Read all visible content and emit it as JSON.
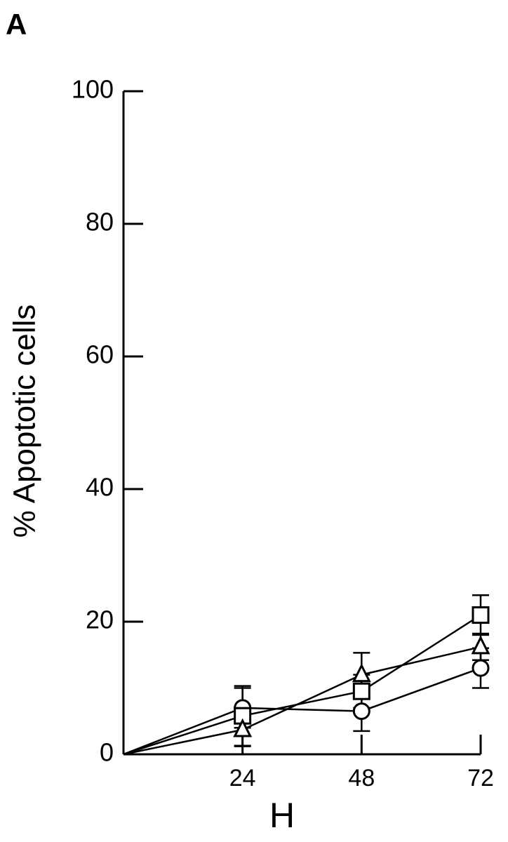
{
  "chart_data": {
    "type": "line",
    "panel_label": "A",
    "y_label": "% Apoptotic cells",
    "x_label": "H",
    "x": [
      0,
      24,
      48,
      72
    ],
    "xlim": [
      0,
      72
    ],
    "xticks": [
      24,
      48,
      72
    ],
    "ylim": [
      0,
      100
    ],
    "yticks": [
      0,
      20,
      40,
      60,
      80,
      100
    ],
    "series": [
      {
        "marker": "circle",
        "color": "#000000",
        "values": [
          0,
          7,
          6.5,
          13
        ],
        "errors": [
          null,
          3,
          3,
          3
        ]
      },
      {
        "marker": "square",
        "color": "#000000",
        "values": [
          0,
          5.8,
          9.5,
          21
        ],
        "errors": [
          null,
          4.5,
          2.5,
          3
        ]
      },
      {
        "marker": "triangle",
        "color": "#000000",
        "values": [
          0,
          3.7,
          12,
          16.2
        ],
        "errors": [
          null,
          2.5,
          3.3,
          2
        ]
      }
    ]
  }
}
